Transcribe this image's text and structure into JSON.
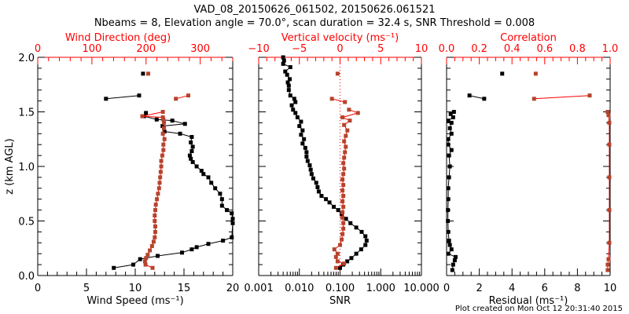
{
  "title_line1": "VAD_08_20150626_061502, 20150626.061521",
  "title_line2": "Nbeams = 8, Elevation angle = 70.0°, scan duration = 32.4 s, SNR Threshold = 0.008",
  "footer": "Plot created on Mon Oct 12 20:31:40 2015",
  "colors": {
    "primary": "#000000",
    "secondary": "#b5442c",
    "axis_top": "#ff0000"
  },
  "chart_data": [
    {
      "type": "line",
      "panel": "left",
      "ylabel": "z (km AGL)",
      "ylim": [
        0,
        2.0
      ],
      "yticks": [
        "0.0",
        "0.5",
        "1.0",
        "1.5",
        "2.0"
      ],
      "xlabel": "Wind Speed (ms⁻¹)",
      "xlim": [
        0,
        20
      ],
      "xticks": [
        "0",
        "5",
        "10",
        "15",
        "20"
      ],
      "top_label": "Wind Direction (deg)",
      "top_lim": [
        0,
        360
      ],
      "top_ticks": [
        "0",
        "100",
        "200",
        "300"
      ],
      "series": [
        {
          "name": "Wind Speed",
          "axis": "bottom",
          "color": "#000000",
          "segments": [
            [
              [
                7.8,
                0.07
              ],
              [
                9.8,
                0.1
              ],
              [
                10.5,
                0.15
              ],
              [
                12.3,
                0.18
              ],
              [
                14.8,
                0.21
              ],
              [
                15.8,
                0.24
              ],
              [
                16.3,
                0.26
              ],
              [
                17.5,
                0.29
              ],
              [
                19.0,
                0.32
              ],
              [
                19.9,
                0.35
              ],
              [
                20.0,
                0.48
              ],
              [
                20.0,
                0.52
              ],
              [
                19.9,
                0.57
              ],
              [
                19.4,
                0.6
              ],
              [
                18.9,
                0.64
              ],
              [
                18.9,
                0.7
              ],
              [
                18.7,
                0.75
              ],
              [
                18.2,
                0.8
              ],
              [
                17.8,
                0.85
              ],
              [
                17.5,
                0.9
              ],
              [
                17.0,
                0.93
              ],
              [
                16.8,
                0.96
              ],
              [
                16.3,
                1.0
              ],
              [
                15.9,
                1.04
              ],
              [
                15.7,
                1.07
              ],
              [
                15.6,
                1.1
              ],
              [
                15.8,
                1.14
              ],
              [
                15.9,
                1.18
              ],
              [
                15.7,
                1.22
              ],
              [
                15.8,
                1.27
              ],
              [
                14.6,
                1.3
              ],
              [
                13.0,
                1.32
              ],
              [
                12.8,
                1.37
              ],
              [
                15.1,
                1.39
              ],
              [
                13.8,
                1.42
              ],
              [
                12.2,
                1.43
              ],
              [
                10.9,
                1.46
              ],
              [
                11.1,
                1.49
              ]
            ],
            [
              [
                7.0,
                1.62
              ],
              [
                10.4,
                1.65
              ]
            ],
            [
              [
                10.8,
                1.85
              ]
            ]
          ]
        },
        {
          "name": "Wind Direction",
          "axis": "top",
          "color": "#b5442c",
          "segments": [
            [
              [
                212,
                0.07
              ],
              [
                199,
                0.1
              ],
              [
                198,
                0.13
              ],
              [
                200,
                0.16
              ],
              [
                203,
                0.19
              ],
              [
                207,
                0.23
              ],
              [
                211,
                0.27
              ],
              [
                214,
                0.31
              ],
              [
                216,
                0.35
              ],
              [
                217,
                0.4
              ],
              [
                217,
                0.45
              ],
              [
                216,
                0.5
              ],
              [
                216,
                0.55
              ],
              [
                217,
                0.6
              ],
              [
                218,
                0.65
              ],
              [
                220,
                0.7
              ],
              [
                222,
                0.75
              ],
              [
                224,
                0.8
              ],
              [
                225,
                0.85
              ],
              [
                226,
                0.9
              ],
              [
                227,
                0.95
              ],
              [
                228,
                1.0
              ],
              [
                228,
                1.05
              ],
              [
                230,
                1.1
              ],
              [
                232,
                1.15
              ],
              [
                232,
                1.2
              ],
              [
                234,
                1.25
              ],
              [
                231,
                1.3
              ],
              [
                233,
                1.35
              ],
              [
                233,
                1.4
              ],
              [
                232,
                1.43
              ],
              [
                231,
                1.45
              ],
              [
                193,
                1.46
              ],
              [
                231,
                1.5
              ]
            ],
            [
              [
                255,
                1.62
              ],
              [
                278,
                1.65
              ]
            ],
            [
              [
                204,
                1.85
              ]
            ]
          ]
        }
      ]
    },
    {
      "type": "line",
      "panel": "middle",
      "xlabel": "SNR",
      "xscale": "log",
      "xlim": [
        0.001,
        10.0
      ],
      "xticks": [
        "0.001",
        "0.010",
        "0.100",
        "1.000",
        "10.000"
      ],
      "top_label": "Vertical velocity (ms⁻¹)",
      "top_lim": [
        -10,
        10
      ],
      "top_ticks": [
        "−10",
        "−5",
        "0",
        "5",
        "10"
      ],
      "series": [
        {
          "name": "SNR",
          "axis": "bottom",
          "color": "#000000",
          "segments": [
            [
              [
                0.1,
                0.07
              ],
              [
                0.12,
                0.1
              ],
              [
                0.15,
                0.13
              ],
              [
                0.19,
                0.16
              ],
              [
                0.25,
                0.2
              ],
              [
                0.33,
                0.24
              ],
              [
                0.42,
                0.28
              ],
              [
                0.45,
                0.32
              ],
              [
                0.42,
                0.36
              ],
              [
                0.34,
                0.4
              ],
              [
                0.25,
                0.44
              ],
              [
                0.18,
                0.48
              ],
              [
                0.14,
                0.52
              ],
              [
                0.11,
                0.56
              ],
              [
                0.09,
                0.6
              ],
              [
                0.07,
                0.63
              ],
              [
                0.055,
                0.67
              ],
              [
                0.045,
                0.7
              ],
              [
                0.035,
                0.73
              ],
              [
                0.03,
                0.77
              ],
              [
                0.028,
                0.81
              ],
              [
                0.026,
                0.85
              ],
              [
                0.022,
                0.89
              ],
              [
                0.02,
                0.93
              ],
              [
                0.019,
                0.97
              ],
              [
                0.018,
                1.01
              ],
              [
                0.016,
                1.05
              ],
              [
                0.015,
                1.09
              ],
              [
                0.015,
                1.13
              ],
              [
                0.014,
                1.17
              ],
              [
                0.012,
                1.21
              ],
              [
                0.013,
                1.25
              ],
              [
                0.011,
                1.29
              ],
              [
                0.012,
                1.33
              ],
              [
                0.01,
                1.37
              ],
              [
                0.011,
                1.41
              ],
              [
                0.009,
                1.45
              ],
              [
                0.008,
                1.49
              ],
              [
                0.007,
                1.52
              ],
              [
                0.0065,
                1.56
              ],
              [
                0.008,
                1.59
              ],
              [
                0.0075,
                1.62
              ],
              [
                0.006,
                1.65
              ],
              [
                0.0055,
                1.7
              ],
              [
                0.0055,
                1.74
              ],
              [
                0.0052,
                1.77
              ],
              [
                0.0058,
                1.8
              ],
              [
                0.005,
                1.84
              ],
              [
                0.0045,
                1.87
              ],
              [
                0.006,
                1.91
              ],
              [
                0.004,
                1.94
              ],
              [
                0.0042,
                1.97
              ],
              [
                0.004,
                2.0
              ]
            ]
          ]
        },
        {
          "name": "Vertical velocity",
          "axis": "top",
          "color": "#b5442c",
          "segments": [
            [
              [
                -0.5,
                0.07
              ],
              [
                0.5,
                0.11
              ],
              [
                -0.3,
                0.13
              ],
              [
                -0.5,
                0.17
              ],
              [
                -0.3,
                0.2
              ],
              [
                -0.7,
                0.24
              ],
              [
                0.0,
                0.28
              ],
              [
                0.2,
                0.33
              ],
              [
                0.3,
                0.38
              ],
              [
                0.4,
                0.43
              ],
              [
                0.4,
                0.48
              ],
              [
                0.3,
                0.53
              ],
              [
                0.3,
                0.58
              ],
              [
                0.4,
                0.63
              ],
              [
                0.3,
                0.68
              ],
              [
                0.4,
                0.73
              ],
              [
                0.3,
                0.78
              ],
              [
                0.4,
                0.83
              ],
              [
                0.3,
                0.88
              ],
              [
                0.4,
                0.93
              ],
              [
                0.5,
                0.98
              ],
              [
                0.4,
                1.03
              ],
              [
                0.5,
                1.08
              ],
              [
                0.6,
                1.13
              ],
              [
                0.7,
                1.18
              ],
              [
                0.5,
                1.23
              ],
              [
                0.7,
                1.28
              ],
              [
                0.9,
                1.33
              ],
              [
                0.5,
                1.38
              ],
              [
                1.2,
                1.42
              ],
              [
                0.3,
                1.45
              ],
              [
                2.2,
                1.49
              ],
              [
                1.1,
                1.52
              ]
            ],
            [
              [
                -1.0,
                1.62
              ],
              [
                0.6,
                1.59
              ]
            ],
            [
              [
                -0.3,
                1.85
              ]
            ]
          ]
        }
      ]
    },
    {
      "type": "line",
      "panel": "right",
      "xlabel": "Residual (ms⁻¹)",
      "xlim": [
        0,
        10
      ],
      "xticks": [
        "0",
        "2",
        "4",
        "6",
        "8",
        "10"
      ],
      "top_label": "Correlation",
      "top_lim": [
        0.0,
        1.0
      ],
      "top_ticks": [
        "0.0",
        "0.2",
        "0.4",
        "0.6",
        "0.8",
        "1.0"
      ],
      "series": [
        {
          "name": "Residual",
          "axis": "bottom",
          "color": "#000000",
          "segments": [
            [
              [
                0.35,
                0.05
              ],
              [
                0.4,
                0.1
              ],
              [
                0.5,
                0.14
              ],
              [
                0.55,
                0.17
              ],
              [
                0.1,
                0.2
              ],
              [
                0.3,
                0.24
              ],
              [
                0.2,
                0.28
              ],
              [
                0.15,
                0.32
              ],
              [
                0.1,
                0.4
              ],
              [
                0.08,
                0.5
              ],
              [
                0.08,
                0.6
              ],
              [
                0.1,
                0.7
              ],
              [
                0.1,
                0.8
              ],
              [
                0.15,
                0.9
              ],
              [
                0.2,
                1.0
              ],
              [
                0.15,
                1.1
              ],
              [
                0.3,
                1.15
              ],
              [
                0.1,
                1.2
              ],
              [
                0.1,
                1.25
              ],
              [
                0.3,
                1.3
              ],
              [
                0.2,
                1.35
              ],
              [
                0.3,
                1.4
              ],
              [
                0.1,
                1.42
              ],
              [
                0.4,
                1.45
              ],
              [
                0.25,
                1.48
              ],
              [
                0.45,
                1.5
              ]
            ],
            [
              [
                1.4,
                1.65
              ],
              [
                2.3,
                1.62
              ]
            ],
            [
              [
                3.4,
                1.85
              ]
            ]
          ]
        },
        {
          "name": "Correlation",
          "axis": "top",
          "color": "#b5442c",
          "segments": [
            [
              [
                0.985,
                0.05
              ],
              [
                0.985,
                0.1
              ],
              [
                0.99,
                0.15
              ],
              [
                0.995,
                0.3
              ],
              [
                0.995,
                0.6
              ],
              [
                0.995,
                0.9
              ],
              [
                0.995,
                1.2
              ],
              [
                0.995,
                1.4
              ],
              [
                0.99,
                1.47
              ],
              [
                0.985,
                1.5
              ]
            ],
            [
              [
                0.535,
                1.62
              ],
              [
                0.875,
                1.65
              ]
            ],
            [
              [
                0.545,
                1.85
              ]
            ]
          ]
        }
      ]
    }
  ]
}
